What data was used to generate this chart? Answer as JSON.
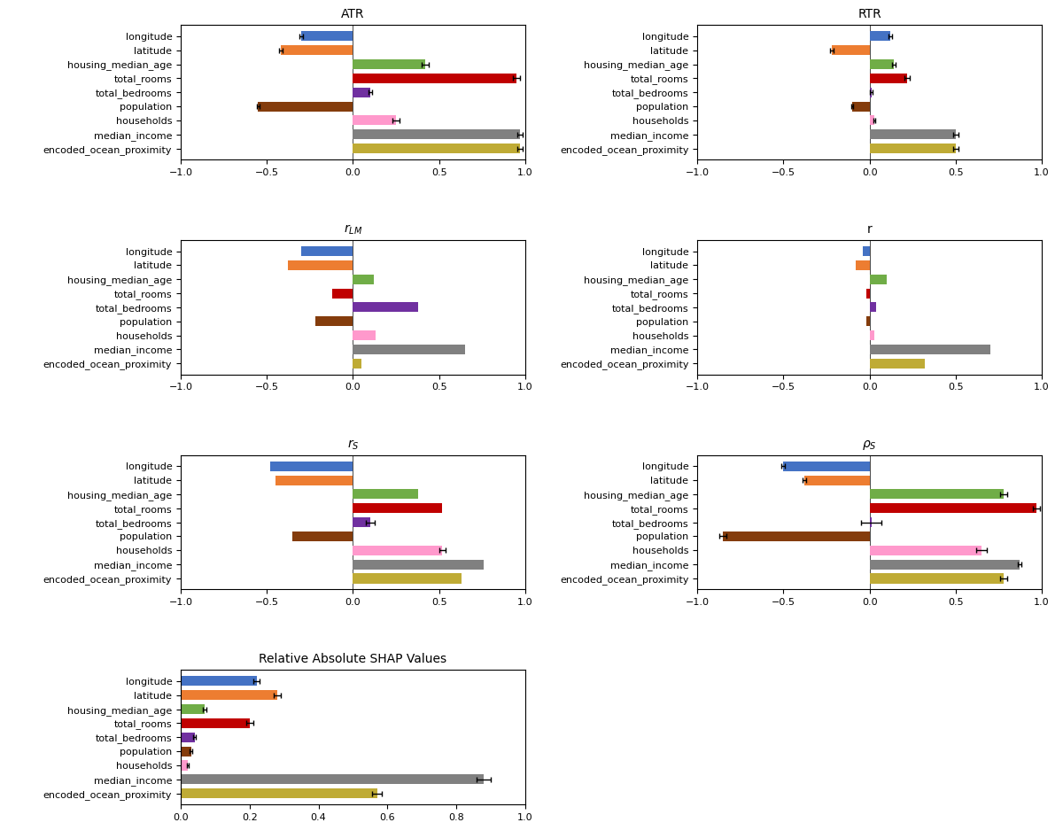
{
  "features": [
    "longitude",
    "latitude",
    "housing_median_age",
    "total_rooms",
    "total_bedrooms",
    "population",
    "households",
    "median_income",
    "encoded_ocean_proximity"
  ],
  "colors": [
    "#4472c4",
    "#ed7d31",
    "#70ad47",
    "#c00000",
    "#7030a0",
    "#843c0c",
    "#ff99cc",
    "#808080",
    "#bfab35"
  ],
  "subplots": [
    {
      "title": "ATR",
      "title_mathtext": false,
      "values": [
        -0.3,
        -0.42,
        0.42,
        0.95,
        0.1,
        -0.55,
        0.25,
        0.97,
        0.97
      ],
      "errors": [
        0.01,
        0.01,
        0.02,
        0.02,
        0.01,
        0.01,
        0.02,
        0.015,
        0.015
      ],
      "xlim": [
        -1.0,
        1.0
      ],
      "xticks": [
        -1.0,
        -0.5,
        0.0,
        0.5,
        1.0
      ]
    },
    {
      "title": "RTR",
      "title_mathtext": false,
      "values": [
        0.12,
        -0.22,
        0.14,
        0.22,
        0.01,
        -0.1,
        0.03,
        0.5,
        0.5
      ],
      "errors": [
        0.01,
        0.01,
        0.01,
        0.015,
        0.01,
        0.005,
        0.005,
        0.015,
        0.015
      ],
      "xlim": [
        -1.0,
        1.0
      ],
      "xticks": [
        -1.0,
        -0.5,
        0.0,
        0.5,
        1.0
      ]
    },
    {
      "title": "r_{LM}",
      "title_mathtext": true,
      "values": [
        -0.3,
        -0.38,
        0.12,
        -0.12,
        0.38,
        -0.22,
        0.13,
        0.65,
        0.05
      ],
      "errors": [
        0.0,
        0.0,
        0.0,
        0.0,
        0.0,
        0.0,
        0.0,
        0.0,
        0.0
      ],
      "xlim": [
        -1.0,
        1.0
      ],
      "xticks": [
        -1.0,
        -0.5,
        0.0,
        0.5,
        1.0
      ]
    },
    {
      "title": "r",
      "title_mathtext": false,
      "values": [
        -0.04,
        -0.08,
        0.1,
        -0.02,
        0.04,
        -0.02,
        0.03,
        0.7,
        0.32
      ],
      "errors": [
        0.0,
        0.0,
        0.0,
        0.0,
        0.0,
        0.0,
        0.0,
        0.0,
        0.0
      ],
      "xlim": [
        -1.0,
        1.0
      ],
      "xticks": [
        -1.0,
        -0.5,
        0.0,
        0.5,
        1.0
      ]
    },
    {
      "title": "r_S",
      "title_mathtext": true,
      "values": [
        -0.48,
        -0.45,
        0.38,
        0.52,
        0.1,
        -0.35,
        0.52,
        0.76,
        0.63
      ],
      "errors": [
        0.0,
        0.0,
        0.0,
        0.0,
        0.025,
        0.0,
        0.02,
        0.0,
        0.0
      ],
      "xlim": [
        -1.0,
        1.0
      ],
      "xticks": [
        -1.0,
        -0.5,
        0.0,
        0.5,
        1.0
      ]
    },
    {
      "title": "\\rho_S",
      "title_mathtext": true,
      "values": [
        -0.5,
        -0.38,
        0.78,
        0.97,
        0.01,
        -0.85,
        0.65,
        0.87,
        0.78
      ],
      "errors": [
        0.01,
        0.01,
        0.02,
        0.02,
        0.06,
        0.02,
        0.03,
        0.01,
        0.02
      ],
      "xlim": [
        -1.0,
        1.0
      ],
      "xticks": [
        -1.0,
        -0.5,
        0.0,
        0.5,
        1.0
      ]
    },
    {
      "title": "Relative Absolute SHAP Values",
      "title_mathtext": false,
      "values": [
        0.22,
        0.28,
        0.07,
        0.2,
        0.04,
        0.03,
        0.02,
        0.88,
        0.57
      ],
      "errors": [
        0.01,
        0.01,
        0.005,
        0.01,
        0.003,
        0.003,
        0.003,
        0.02,
        0.015
      ],
      "xlim": [
        0.0,
        1.0
      ],
      "xticks": [
        0.0,
        0.2,
        0.4,
        0.6,
        0.8,
        1.0
      ]
    }
  ]
}
